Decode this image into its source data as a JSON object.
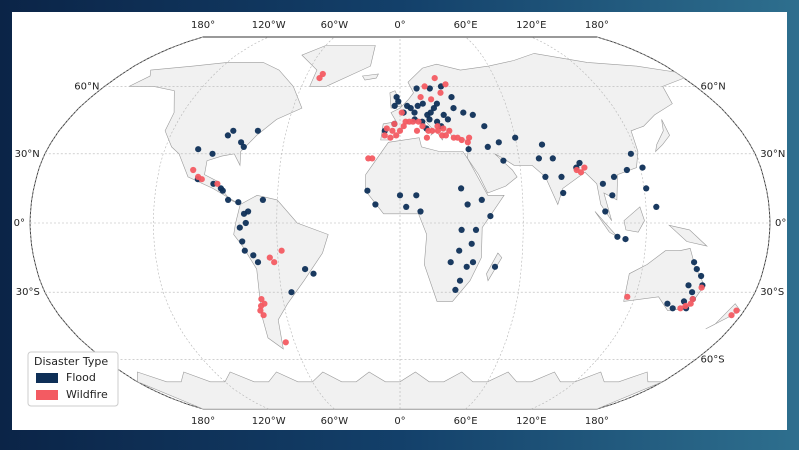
{
  "map": {
    "projection": "robinson",
    "grid": true,
    "legend_position": "lower left",
    "legend_title": "Disaster Type",
    "lon_labels": [
      {
        "value": -180,
        "label": "180°"
      },
      {
        "value": -120,
        "label": "120°W"
      },
      {
        "value": -60,
        "label": "60°W"
      },
      {
        "value": 0,
        "label": "0°"
      },
      {
        "value": 60,
        "label": "60°E"
      },
      {
        "value": 120,
        "label": "120°E"
      },
      {
        "value": 180,
        "label": "180°"
      }
    ],
    "lat_labels": [
      {
        "value": 60,
        "label": "60°N"
      },
      {
        "value": 30,
        "label": "30°N"
      },
      {
        "value": 0,
        "label": "0°"
      },
      {
        "value": -30,
        "label": "30°S"
      },
      {
        "value": -60,
        "label": "60°S"
      }
    ],
    "series": [
      {
        "name": "Flood",
        "color": "#0e2f57",
        "points": [
          [
            -90,
            38
          ],
          [
            -88,
            40
          ],
          [
            -75,
            40
          ],
          [
            -80,
            33
          ],
          [
            -82,
            35
          ],
          [
            -95,
            30
          ],
          [
            -103,
            32
          ],
          [
            -100,
            19
          ],
          [
            -92,
            17
          ],
          [
            -88,
            15
          ],
          [
            -87,
            14
          ],
          [
            -84,
            10
          ],
          [
            -79,
            9
          ],
          [
            -76,
            4
          ],
          [
            -75,
            0
          ],
          [
            -78,
            -2
          ],
          [
            -77,
            -8
          ],
          [
            -76,
            -12
          ],
          [
            -72,
            -14
          ],
          [
            -70,
            -17
          ],
          [
            -74,
            5
          ],
          [
            -67,
            10
          ],
          [
            -43,
            -22
          ],
          [
            -47,
            -20
          ],
          [
            -55,
            -30
          ],
          [
            2,
            48
          ],
          [
            4,
            51
          ],
          [
            6,
            50
          ],
          [
            8,
            48
          ],
          [
            10,
            51
          ],
          [
            13,
            52
          ],
          [
            15,
            47
          ],
          [
            17,
            48
          ],
          [
            19,
            50
          ],
          [
            21,
            52
          ],
          [
            24,
            47
          ],
          [
            26,
            45
          ],
          [
            20,
            44
          ],
          [
            12,
            44
          ],
          [
            14,
            41
          ],
          [
            -3,
            43
          ],
          [
            -1,
            53
          ],
          [
            -3,
            51
          ],
          [
            -2,
            55
          ],
          [
            10,
            59
          ],
          [
            18,
            59
          ],
          [
            25,
            60
          ],
          [
            30,
            50
          ],
          [
            35,
            48
          ],
          [
            40,
            47
          ],
          [
            45,
            42
          ],
          [
            8,
            45
          ],
          [
            16,
            45
          ],
          [
            -8,
            40
          ],
          [
            22,
            42
          ],
          [
            30,
            55
          ],
          [
            35,
            32
          ],
          [
            51,
            35
          ],
          [
            52,
            27
          ],
          [
            45,
            33
          ],
          [
            60,
            37
          ],
          [
            70,
            28
          ],
          [
            73,
            34
          ],
          [
            77,
            28
          ],
          [
            80,
            20
          ],
          [
            88,
            24
          ],
          [
            72,
            20
          ],
          [
            80,
            13
          ],
          [
            90,
            26
          ],
          [
            100,
            17
          ],
          [
            106,
            20
          ],
          [
            104,
            12
          ],
          [
            121,
            15
          ],
          [
            125,
            7
          ],
          [
            106,
            -6
          ],
          [
            110,
            -7
          ],
          [
            121,
            24
          ],
          [
            113,
            23
          ],
          [
            117,
            30
          ],
          [
            100,
            5
          ],
          [
            0,
            12
          ],
          [
            3,
            7
          ],
          [
            -16,
            14
          ],
          [
            -12,
            8
          ],
          [
            8,
            12
          ],
          [
            10,
            5
          ],
          [
            30,
            15
          ],
          [
            33,
            8
          ],
          [
            37,
            -3
          ],
          [
            35,
            -9
          ],
          [
            30,
            -3
          ],
          [
            29,
            -12
          ],
          [
            36,
            -17
          ],
          [
            33,
            -19
          ],
          [
            30,
            -25
          ],
          [
            28,
            -29
          ],
          [
            47,
            -19
          ],
          [
            25,
            -17
          ],
          [
            40,
            10
          ],
          [
            44,
            3
          ],
          [
            145,
            -17
          ],
          [
            147,
            -20
          ],
          [
            150,
            -23
          ],
          [
            152,
            -27
          ],
          [
            148,
            -30
          ],
          [
            146,
            -34
          ],
          [
            150,
            -33
          ],
          [
            142,
            -37
          ],
          [
            138,
            -35
          ],
          [
            149,
            -37
          ],
          [
            145,
            -27
          ]
        ]
      },
      {
        "name": "Wildfire",
        "color": "#f35b62",
        "points": [
          [
            -8,
            38
          ],
          [
            -7,
            41
          ],
          [
            -4,
            40
          ],
          [
            -2,
            38
          ],
          [
            0,
            40
          ],
          [
            2,
            42
          ],
          [
            5,
            44
          ],
          [
            3,
            44
          ],
          [
            7,
            44
          ],
          [
            9,
            40
          ],
          [
            12,
            42
          ],
          [
            15,
            40
          ],
          [
            14,
            37
          ],
          [
            17,
            40
          ],
          [
            20,
            40
          ],
          [
            22,
            38
          ],
          [
            24,
            38
          ],
          [
            26,
            40
          ],
          [
            28,
            37
          ],
          [
            30,
            37
          ],
          [
            32,
            36
          ],
          [
            35,
            35
          ],
          [
            36,
            37
          ],
          [
            -5,
            37
          ],
          [
            10,
            44
          ],
          [
            20,
            42
          ],
          [
            23,
            41
          ],
          [
            -16,
            28
          ],
          [
            -14,
            28
          ],
          [
            -3,
            43
          ],
          [
            1,
            48
          ],
          [
            12,
            55
          ],
          [
            15,
            60
          ],
          [
            22,
            64
          ],
          [
            28,
            61
          ],
          [
            24,
            57
          ],
          [
            18,
            54
          ],
          [
            -51,
            64
          ],
          [
            -50,
            66
          ],
          [
            -100,
            20
          ],
          [
            -98,
            19
          ],
          [
            -103,
            23
          ],
          [
            -90,
            17
          ],
          [
            -62,
            -17
          ],
          [
            -64,
            -15
          ],
          [
            -58,
            -12
          ],
          [
            -71,
            -33
          ],
          [
            -72,
            -36
          ],
          [
            -73,
            -38
          ],
          [
            -72,
            -40
          ],
          [
            -70,
            -35
          ],
          [
            -65,
            -52
          ],
          [
            152,
            -28
          ],
          [
            150,
            -33
          ],
          [
            148,
            -36
          ],
          [
            146,
            -37
          ],
          [
            116,
            -32
          ],
          [
            150,
            -35
          ],
          [
            176,
            -38
          ],
          [
            175,
            -40
          ],
          [
            88,
            23
          ],
          [
            92,
            24
          ],
          [
            90,
            22
          ]
        ]
      }
    ]
  }
}
